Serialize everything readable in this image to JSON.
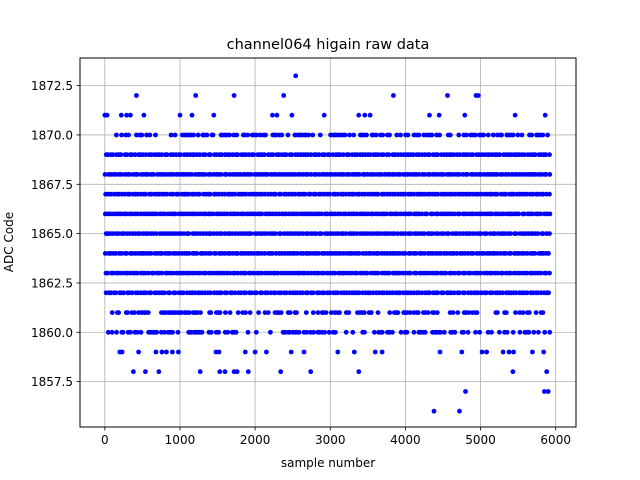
{
  "chart_data": {
    "type": "scatter",
    "title": "channel064 higain raw data",
    "xlabel": "sample number",
    "ylabel": "ADC Code",
    "xlim": [
      -330,
      6270
    ],
    "ylim": [
      1855.2,
      1873.9
    ],
    "xticks": [
      0,
      1000,
      2000,
      3000,
      4000,
      5000,
      6000
    ],
    "xtick_labels": [
      "0",
      "1000",
      "2000",
      "3000",
      "4000",
      "5000",
      "6000"
    ],
    "yticks": [
      1857.5,
      1860.0,
      1862.5,
      1865.0,
      1867.5,
      1870.0,
      1872.5
    ],
    "ytick_labels": [
      "1857.5",
      "1860.0",
      "1862.5",
      "1865.0",
      "1867.5",
      "1870.0",
      "1872.5"
    ],
    "grid": true,
    "marker_color": "#0000ff",
    "x_range": [
      0,
      5920
    ],
    "dense_levels": [
      1862,
      1863,
      1864,
      1865,
      1866,
      1867,
      1868,
      1869
    ],
    "sparse_levels": [
      1860,
      1861,
      1870
    ],
    "outliers": [
      {
        "x": 0,
        "y": 1871
      },
      {
        "x": 30,
        "y": 1871
      },
      {
        "x": 220,
        "y": 1871
      },
      {
        "x": 290,
        "y": 1871
      },
      {
        "x": 340,
        "y": 1871
      },
      {
        "x": 520,
        "y": 1871
      },
      {
        "x": 1000,
        "y": 1871
      },
      {
        "x": 1160,
        "y": 1871
      },
      {
        "x": 1450,
        "y": 1871
      },
      {
        "x": 2230,
        "y": 1871
      },
      {
        "x": 2290,
        "y": 1871
      },
      {
        "x": 2490,
        "y": 1871
      },
      {
        "x": 2920,
        "y": 1871
      },
      {
        "x": 3380,
        "y": 1871
      },
      {
        "x": 3460,
        "y": 1871
      },
      {
        "x": 3530,
        "y": 1871
      },
      {
        "x": 4320,
        "y": 1871
      },
      {
        "x": 4450,
        "y": 1871
      },
      {
        "x": 4790,
        "y": 1871
      },
      {
        "x": 5460,
        "y": 1871
      },
      {
        "x": 5860,
        "y": 1871
      },
      {
        "x": 420,
        "y": 1872
      },
      {
        "x": 1210,
        "y": 1872
      },
      {
        "x": 1720,
        "y": 1872
      },
      {
        "x": 2380,
        "y": 1872
      },
      {
        "x": 3840,
        "y": 1872
      },
      {
        "x": 4560,
        "y": 1872
      },
      {
        "x": 4940,
        "y": 1872
      },
      {
        "x": 4970,
        "y": 1872
      },
      {
        "x": 2540,
        "y": 1873
      },
      {
        "x": 200,
        "y": 1859
      },
      {
        "x": 230,
        "y": 1859
      },
      {
        "x": 450,
        "y": 1859
      },
      {
        "x": 680,
        "y": 1859
      },
      {
        "x": 760,
        "y": 1859
      },
      {
        "x": 820,
        "y": 1859
      },
      {
        "x": 900,
        "y": 1859
      },
      {
        "x": 980,
        "y": 1859
      },
      {
        "x": 1480,
        "y": 1859
      },
      {
        "x": 1520,
        "y": 1859
      },
      {
        "x": 1870,
        "y": 1859
      },
      {
        "x": 2000,
        "y": 1859
      },
      {
        "x": 2150,
        "y": 1859
      },
      {
        "x": 2480,
        "y": 1859
      },
      {
        "x": 2650,
        "y": 1859
      },
      {
        "x": 3100,
        "y": 1859
      },
      {
        "x": 3320,
        "y": 1859
      },
      {
        "x": 3600,
        "y": 1859
      },
      {
        "x": 3690,
        "y": 1859
      },
      {
        "x": 4460,
        "y": 1859
      },
      {
        "x": 4750,
        "y": 1859
      },
      {
        "x": 5020,
        "y": 1859
      },
      {
        "x": 5080,
        "y": 1859
      },
      {
        "x": 5300,
        "y": 1859
      },
      {
        "x": 5380,
        "y": 1859
      },
      {
        "x": 5440,
        "y": 1859
      },
      {
        "x": 5690,
        "y": 1859
      },
      {
        "x": 5840,
        "y": 1859
      },
      {
        "x": 380,
        "y": 1858
      },
      {
        "x": 540,
        "y": 1858
      },
      {
        "x": 720,
        "y": 1858
      },
      {
        "x": 1270,
        "y": 1858
      },
      {
        "x": 1530,
        "y": 1858
      },
      {
        "x": 1600,
        "y": 1858
      },
      {
        "x": 1720,
        "y": 1858
      },
      {
        "x": 1760,
        "y": 1858
      },
      {
        "x": 1910,
        "y": 1858
      },
      {
        "x": 2340,
        "y": 1858
      },
      {
        "x": 2740,
        "y": 1858
      },
      {
        "x": 3380,
        "y": 1858
      },
      {
        "x": 5430,
        "y": 1858
      },
      {
        "x": 5880,
        "y": 1858
      },
      {
        "x": 4800,
        "y": 1857
      },
      {
        "x": 5850,
        "y": 1857
      },
      {
        "x": 5900,
        "y": 1857
      },
      {
        "x": 4380,
        "y": 1856
      },
      {
        "x": 4720,
        "y": 1856
      }
    ]
  }
}
